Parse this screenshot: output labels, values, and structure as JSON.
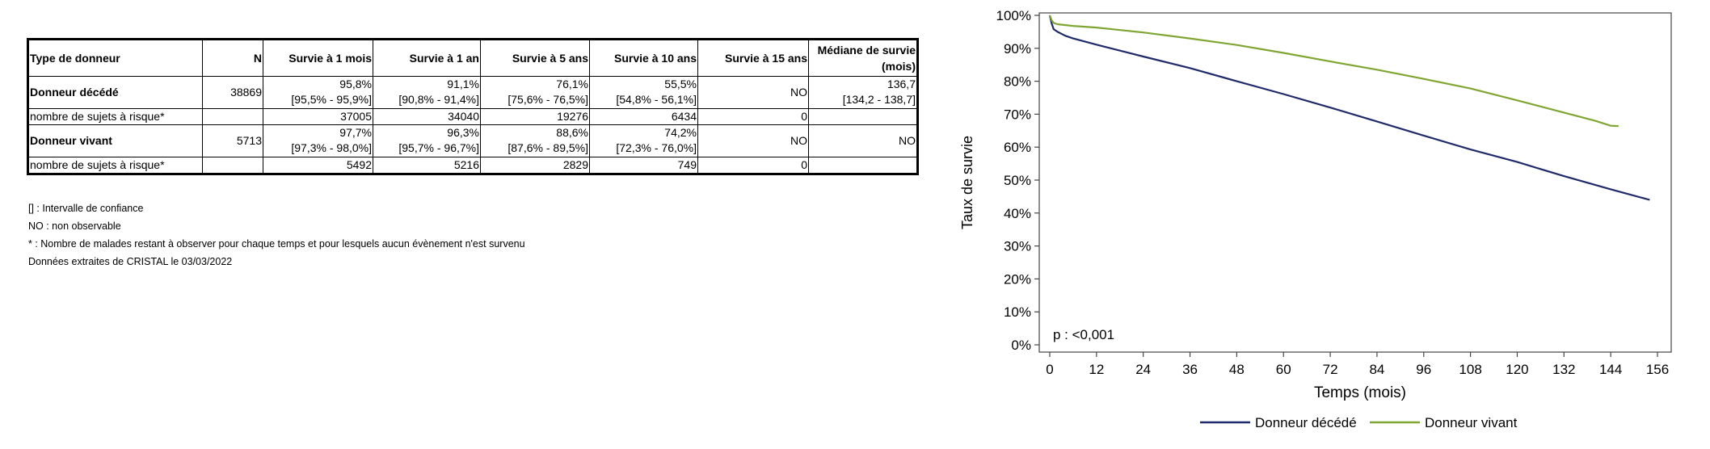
{
  "table": {
    "headers": [
      "Type de donneur",
      "N",
      "Survie à 1 mois",
      "Survie à 1 an",
      "Survie à 5 ans",
      "Survie à 10 ans",
      "Survie à 15 ans",
      "Médiane de survie (mois)"
    ],
    "rows": [
      {
        "label": "Donneur décédé",
        "n": "38869",
        "cells": [
          {
            "v": "95,8%",
            "ci": "[95,5% - 95,9%]"
          },
          {
            "v": "91,1%",
            "ci": "[90,8% - 91,4%]"
          },
          {
            "v": "76,1%",
            "ci": "[75,6% - 76,5%]"
          },
          {
            "v": "55,5%",
            "ci": "[54,8% - 56,1%]"
          },
          {
            "v": "NO",
            "ci": ""
          },
          {
            "v": "136,7",
            "ci": "[134,2 - 138,7]"
          }
        ],
        "risk_label": "nombre de sujets à risque*",
        "risk": [
          "37005",
          "34040",
          "19276",
          "6434",
          "0",
          ""
        ]
      },
      {
        "label": "Donneur vivant",
        "n": "5713",
        "cells": [
          {
            "v": "97,7%",
            "ci": "[97,3% - 98,0%]"
          },
          {
            "v": "96,3%",
            "ci": "[95,7% - 96,7%]"
          },
          {
            "v": "88,6%",
            "ci": "[87,6% - 89,5%]"
          },
          {
            "v": "74,2%",
            "ci": "[72,3% - 76,0%]"
          },
          {
            "v": "NO",
            "ci": ""
          },
          {
            "v": "NO",
            "ci": ""
          }
        ],
        "risk_label": "nombre de sujets à risque*",
        "risk": [
          "5492",
          "5216",
          "2829",
          "749",
          "0",
          ""
        ]
      }
    ]
  },
  "notes": [
    "[] : Intervalle de confiance",
    "NO : non observable",
    "* : Nombre de malades restant à observer pour chaque temps et pour lesquels aucun évènement n'est survenu",
    "Données extraites de CRISTAL le 03/03/2022"
  ],
  "colors": {
    "decede": "#1f2a6b",
    "vivant": "#7fa632"
  },
  "chart_data": {
    "type": "line",
    "title": "",
    "xlabel": "Temps (mois)",
    "ylabel": "Taux de survie",
    "xlim": [
      0,
      156
    ],
    "ylim": [
      0,
      100
    ],
    "x_ticks": [
      0,
      12,
      24,
      36,
      48,
      60,
      72,
      84,
      96,
      108,
      120,
      132,
      144,
      156
    ],
    "y_ticks": [
      0,
      10,
      20,
      30,
      40,
      50,
      60,
      70,
      80,
      90,
      100
    ],
    "y_tick_labels": [
      "0%",
      "10%",
      "20%",
      "30%",
      "40%",
      "50%",
      "60%",
      "70%",
      "80%",
      "90%",
      "100%"
    ],
    "annotation": "p : <0,001",
    "legend_position": "bottom",
    "grid": false,
    "series": [
      {
        "name": "Donneur décédé",
        "color": "#1f2a6b",
        "x": [
          0,
          0.5,
          1,
          2,
          4,
          6,
          12,
          24,
          36,
          48,
          60,
          72,
          84,
          96,
          108,
          120,
          132,
          144,
          154
        ],
        "y": [
          100,
          97.5,
          95.8,
          95,
          93.8,
          93,
          91.1,
          87.5,
          84,
          80,
          76.1,
          72,
          67.8,
          63.5,
          59.3,
          55.5,
          51.2,
          47.2,
          44
        ]
      },
      {
        "name": "Donneur vivant",
        "color": "#7fa632",
        "x": [
          0,
          0.5,
          1,
          2,
          6,
          12,
          24,
          36,
          48,
          60,
          72,
          84,
          96,
          108,
          120,
          132,
          140,
          144,
          146
        ],
        "y": [
          100,
          98.5,
          97.7,
          97.3,
          96.8,
          96.3,
          94.8,
          93,
          91,
          88.6,
          86,
          83.5,
          80.7,
          77.8,
          74.2,
          70.5,
          68,
          66.5,
          66.4
        ]
      }
    ]
  }
}
